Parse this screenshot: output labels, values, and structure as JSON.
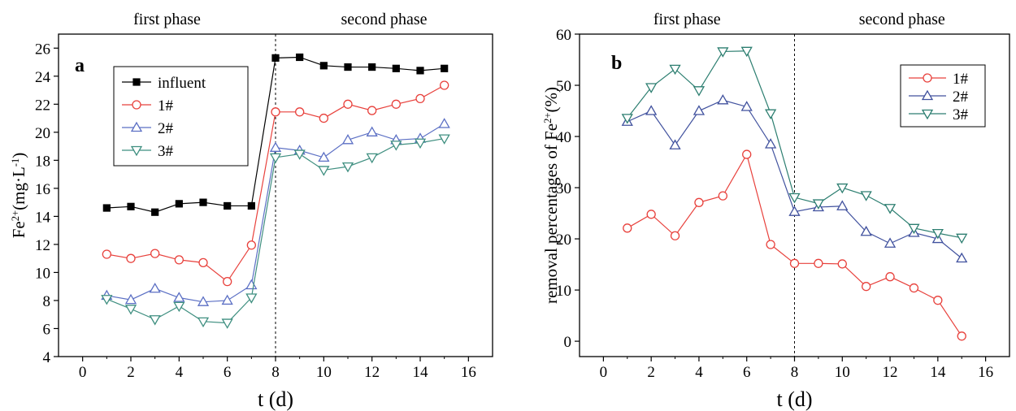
{
  "chart_data": [
    {
      "type": "line",
      "panel_label": "a",
      "phase_labels": [
        "first phase",
        "second phase"
      ],
      "phase_divider_x": 8,
      "xlabel": "t (d)",
      "ylabel": "Fe2+(mg·L-1)",
      "xlim": [
        -1,
        17
      ],
      "ylim": [
        4,
        27
      ],
      "xticks": [
        0,
        2,
        4,
        6,
        8,
        10,
        12,
        14,
        16
      ],
      "yticks": [
        4,
        6,
        8,
        10,
        12,
        14,
        16,
        18,
        20,
        22,
        24,
        26
      ],
      "legend_position": "upper-left",
      "x": [
        1,
        2,
        3,
        4,
        5,
        6,
        7,
        8,
        9,
        10,
        11,
        12,
        13,
        14,
        15
      ],
      "series": [
        {
          "name": "influent",
          "color": "#000000",
          "marker": "square-filled",
          "values": [
            14.6,
            14.7,
            14.3,
            14.9,
            15.0,
            14.75,
            14.75,
            25.3,
            25.35,
            24.75,
            24.65,
            24.65,
            24.55,
            24.4,
            24.55
          ]
        },
        {
          "name": "1#",
          "color": "#e8413c",
          "marker": "circle-open",
          "values": [
            11.3,
            11.0,
            11.35,
            10.9,
            10.7,
            9.35,
            11.95,
            21.45,
            21.45,
            21.0,
            22.0,
            21.55,
            22.0,
            22.4,
            23.35
          ]
        },
        {
          "name": "2#",
          "color": "#5b6fc4",
          "marker": "triangle-up-open",
          "values": [
            8.35,
            8.05,
            8.85,
            8.2,
            7.9,
            8.0,
            9.1,
            18.9,
            18.7,
            18.2,
            19.45,
            20.0,
            19.45,
            19.55,
            20.6
          ]
        },
        {
          "name": "3#",
          "color": "#3f8f80",
          "marker": "triangle-down-open",
          "values": [
            8.1,
            7.4,
            6.65,
            7.6,
            6.5,
            6.4,
            8.2,
            18.2,
            18.45,
            17.3,
            17.55,
            18.2,
            19.1,
            19.25,
            19.55
          ]
        }
      ]
    },
    {
      "type": "line",
      "panel_label": "b",
      "phase_labels": [
        "first phase",
        "second phase"
      ],
      "phase_divider_x": 8,
      "xlabel": "t (d)",
      "ylabel": "removal percentages of Fe2+(%)",
      "xlim": [
        -1,
        17
      ],
      "ylim": [
        -3,
        60
      ],
      "xticks": [
        0,
        2,
        4,
        6,
        8,
        10,
        12,
        14,
        16
      ],
      "yticks": [
        0,
        10,
        20,
        30,
        40,
        50,
        60
      ],
      "legend_position": "upper-right",
      "x": [
        1,
        2,
        3,
        4,
        5,
        6,
        7,
        8,
        9,
        10,
        11,
        12,
        13,
        14,
        15
      ],
      "series": [
        {
          "name": "1#",
          "color": "#e8413c",
          "marker": "circle-open",
          "values": [
            22.1,
            24.8,
            20.6,
            27.1,
            28.4,
            36.5,
            18.9,
            15.2,
            15.2,
            15.1,
            10.7,
            12.6,
            10.4,
            8.0,
            1.0
          ]
        },
        {
          "name": "2#",
          "color": "#40519e",
          "marker": "triangle-up-open",
          "values": [
            42.9,
            45.0,
            38.3,
            45.0,
            47.1,
            45.8,
            38.5,
            25.3,
            26.2,
            26.4,
            21.4,
            19.1,
            21.2,
            20.0,
            16.2
          ]
        },
        {
          "name": "3#",
          "color": "#2c7e70",
          "marker": "triangle-down-open",
          "values": [
            43.6,
            49.6,
            53.2,
            49.0,
            56.6,
            56.7,
            44.5,
            28.1,
            26.9,
            30.0,
            28.5,
            26.0,
            22.1,
            21.1,
            20.2
          ]
        }
      ]
    }
  ]
}
